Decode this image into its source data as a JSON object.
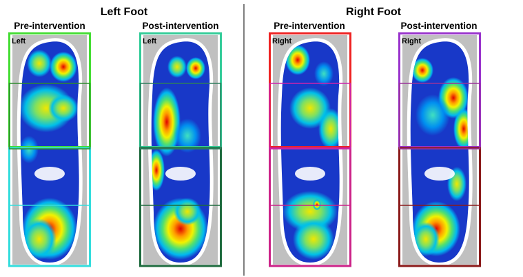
{
  "header": {
    "left_title": "Left Foot",
    "right_title": "Right Foot"
  },
  "panels": [
    {
      "heading": "Pre-intervention",
      "label": "Left"
    },
    {
      "heading": "Post-intervention",
      "label": "Left"
    },
    {
      "heading": "Pre-intervention",
      "label": "Right"
    },
    {
      "heading": "Post-intervention",
      "label": "Right"
    }
  ]
}
